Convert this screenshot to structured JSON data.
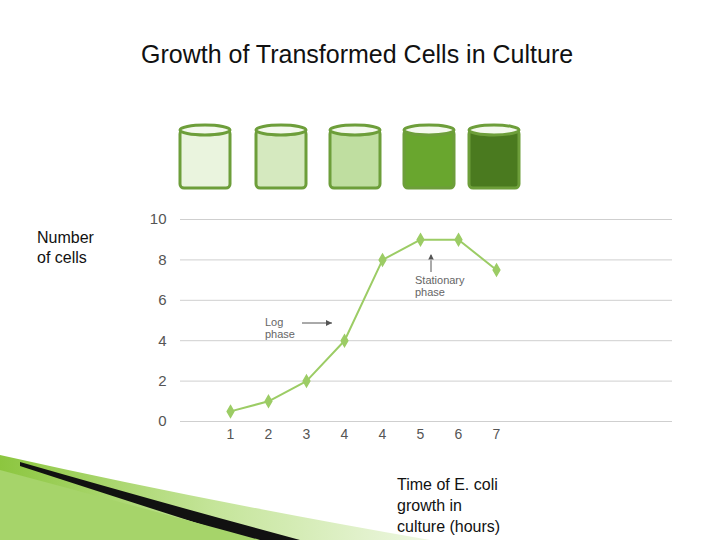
{
  "chart_data": {
    "type": "line",
    "title": "Growth of Transformed Cells in Culture",
    "y_label": "Number\nof cells",
    "x_label": "Time of  E. coli\ngrowth in\nculture  (hours)",
    "categories": [
      "1",
      "2",
      "3",
      "4",
      "4",
      "5",
      "6",
      "7"
    ],
    "values": [
      0.5,
      1,
      2,
      4,
      8,
      9,
      9,
      7.5
    ],
    "color": "#9ccc65",
    "marker": "diamond",
    "ylim": [
      0,
      10
    ],
    "yticks": [
      0,
      2,
      4,
      6,
      8,
      10
    ],
    "grid": true,
    "annotations": [
      "Log\nphase",
      "Stationary\nphase"
    ]
  }
}
